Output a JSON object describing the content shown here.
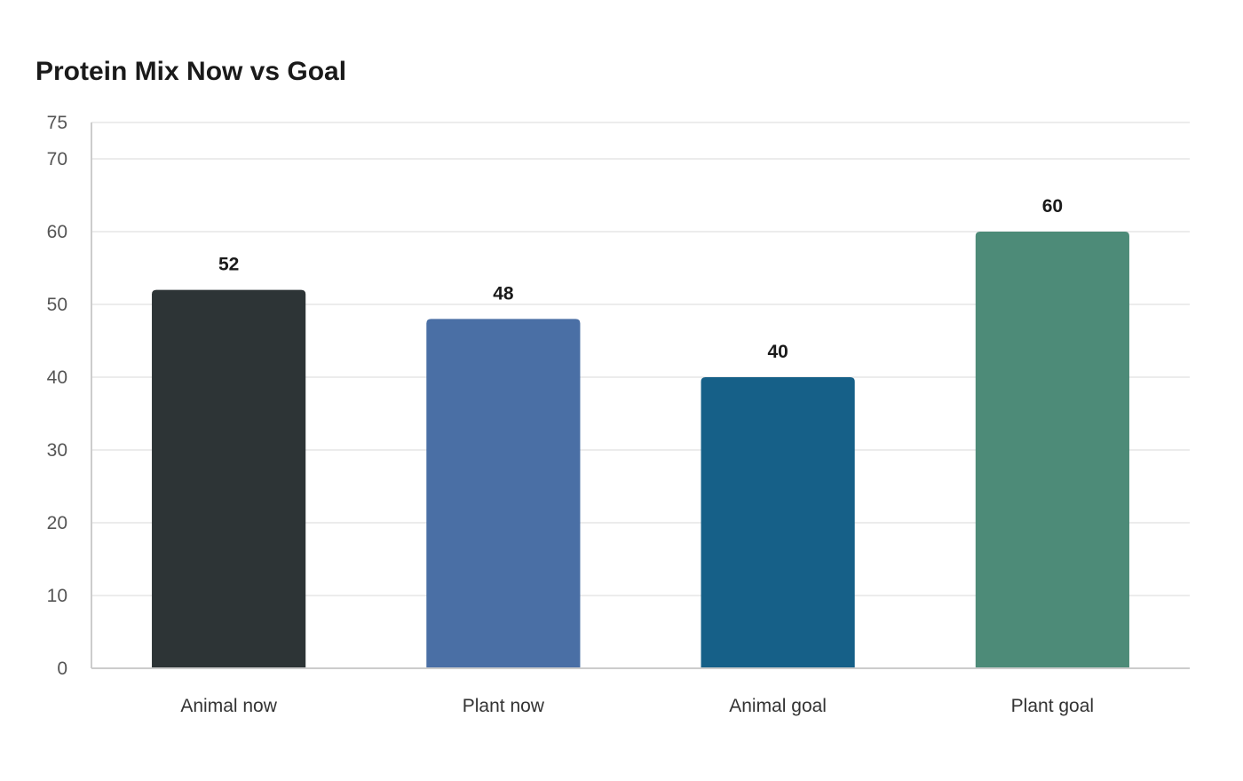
{
  "chart_data": {
    "type": "bar",
    "title": "Protein Mix Now vs Goal",
    "xlabel": "",
    "ylabel": "",
    "categories": [
      "Animal now",
      "Plant now",
      "Animal goal",
      "Plant goal"
    ],
    "values": [
      52,
      48,
      40,
      60
    ],
    "colors": [
      "#2d3436",
      "#4a6fa5",
      "#166088",
      "#4d8b78"
    ],
    "ylim": [
      0,
      75
    ],
    "yticks": [
      0,
      10,
      20,
      30,
      40,
      50,
      60,
      70,
      75
    ],
    "grid": true,
    "legend": "none"
  }
}
